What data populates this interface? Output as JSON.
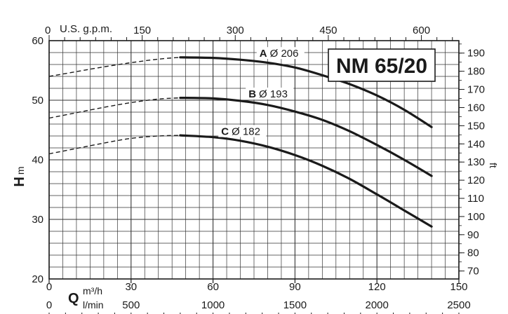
{
  "chart_data": {
    "type": "line",
    "title": "NM 65/20",
    "grid": true,
    "x": {
      "ylim_unit": "m3/h",
      "range": [
        0,
        150
      ]
    },
    "y": {
      "range": [
        20,
        60
      ]
    },
    "axes": {
      "left": {
        "label_main": "H",
        "label_unit": "m",
        "ticks": [
          "20",
          "30",
          "40",
          "50",
          "60"
        ],
        "range": [
          20,
          60
        ]
      },
      "right": {
        "label": "ft",
        "ticks": [
          "70",
          "80",
          "90",
          "100",
          "110",
          "120",
          "130",
          "140",
          "150",
          "160",
          "170",
          "180",
          "190"
        ]
      },
      "top": {
        "label": "U.S. g.p.m.",
        "ticks": [
          "0",
          "150",
          "300",
          "450",
          "600"
        ]
      },
      "bottom_m3h": {
        "label_main": "Q",
        "label_unit": "m³/h",
        "ticks": [
          "0",
          "30",
          "60",
          "90",
          "120",
          "150"
        ],
        "range": [
          0,
          150
        ]
      },
      "bottom_lmin": {
        "label_unit": "l/min",
        "ticks": [
          "0",
          "500",
          "1000",
          "1500",
          "2000",
          "2500"
        ]
      }
    },
    "series": [
      {
        "name": "A Ø 206",
        "letter": "A",
        "label": "Ø 206",
        "dashed": [
          [
            0,
            54.0
          ],
          [
            10,
            54.8
          ],
          [
            20,
            55.6
          ],
          [
            30,
            56.3
          ],
          [
            40,
            56.9
          ],
          [
            48,
            57.2
          ]
        ],
        "solid": [
          [
            48,
            57.2
          ],
          [
            60,
            57.1
          ],
          [
            70,
            56.8
          ],
          [
            80,
            56.3
          ],
          [
            90,
            55.5
          ],
          [
            100,
            54.2
          ],
          [
            110,
            52.7
          ],
          [
            120,
            50.8
          ],
          [
            130,
            48.4
          ],
          [
            140,
            45.5
          ]
        ]
      },
      {
        "name": "B Ø 193",
        "letter": "B",
        "label": "Ø 193",
        "dashed": [
          [
            0,
            47.0
          ],
          [
            10,
            47.9
          ],
          [
            20,
            48.8
          ],
          [
            30,
            49.6
          ],
          [
            40,
            50.2
          ],
          [
            48,
            50.4
          ]
        ],
        "solid": [
          [
            48,
            50.4
          ],
          [
            60,
            50.3
          ],
          [
            70,
            49.9
          ],
          [
            80,
            49.2
          ],
          [
            90,
            48.1
          ],
          [
            100,
            46.7
          ],
          [
            110,
            44.8
          ],
          [
            120,
            42.5
          ],
          [
            130,
            40.0
          ],
          [
            140,
            37.3
          ]
        ]
      },
      {
        "name": "C Ø 182",
        "letter": "C",
        "label": "Ø 182",
        "dashed": [
          [
            0,
            41.0
          ],
          [
            10,
            41.9
          ],
          [
            20,
            42.8
          ],
          [
            30,
            43.6
          ],
          [
            40,
            44.0
          ],
          [
            48,
            44.1
          ]
        ],
        "solid": [
          [
            48,
            44.1
          ],
          [
            60,
            43.8
          ],
          [
            70,
            43.2
          ],
          [
            80,
            42.2
          ],
          [
            90,
            40.8
          ],
          [
            100,
            39.0
          ],
          [
            110,
            36.8
          ],
          [
            120,
            34.2
          ],
          [
            130,
            31.5
          ],
          [
            140,
            28.8
          ]
        ]
      }
    ]
  }
}
